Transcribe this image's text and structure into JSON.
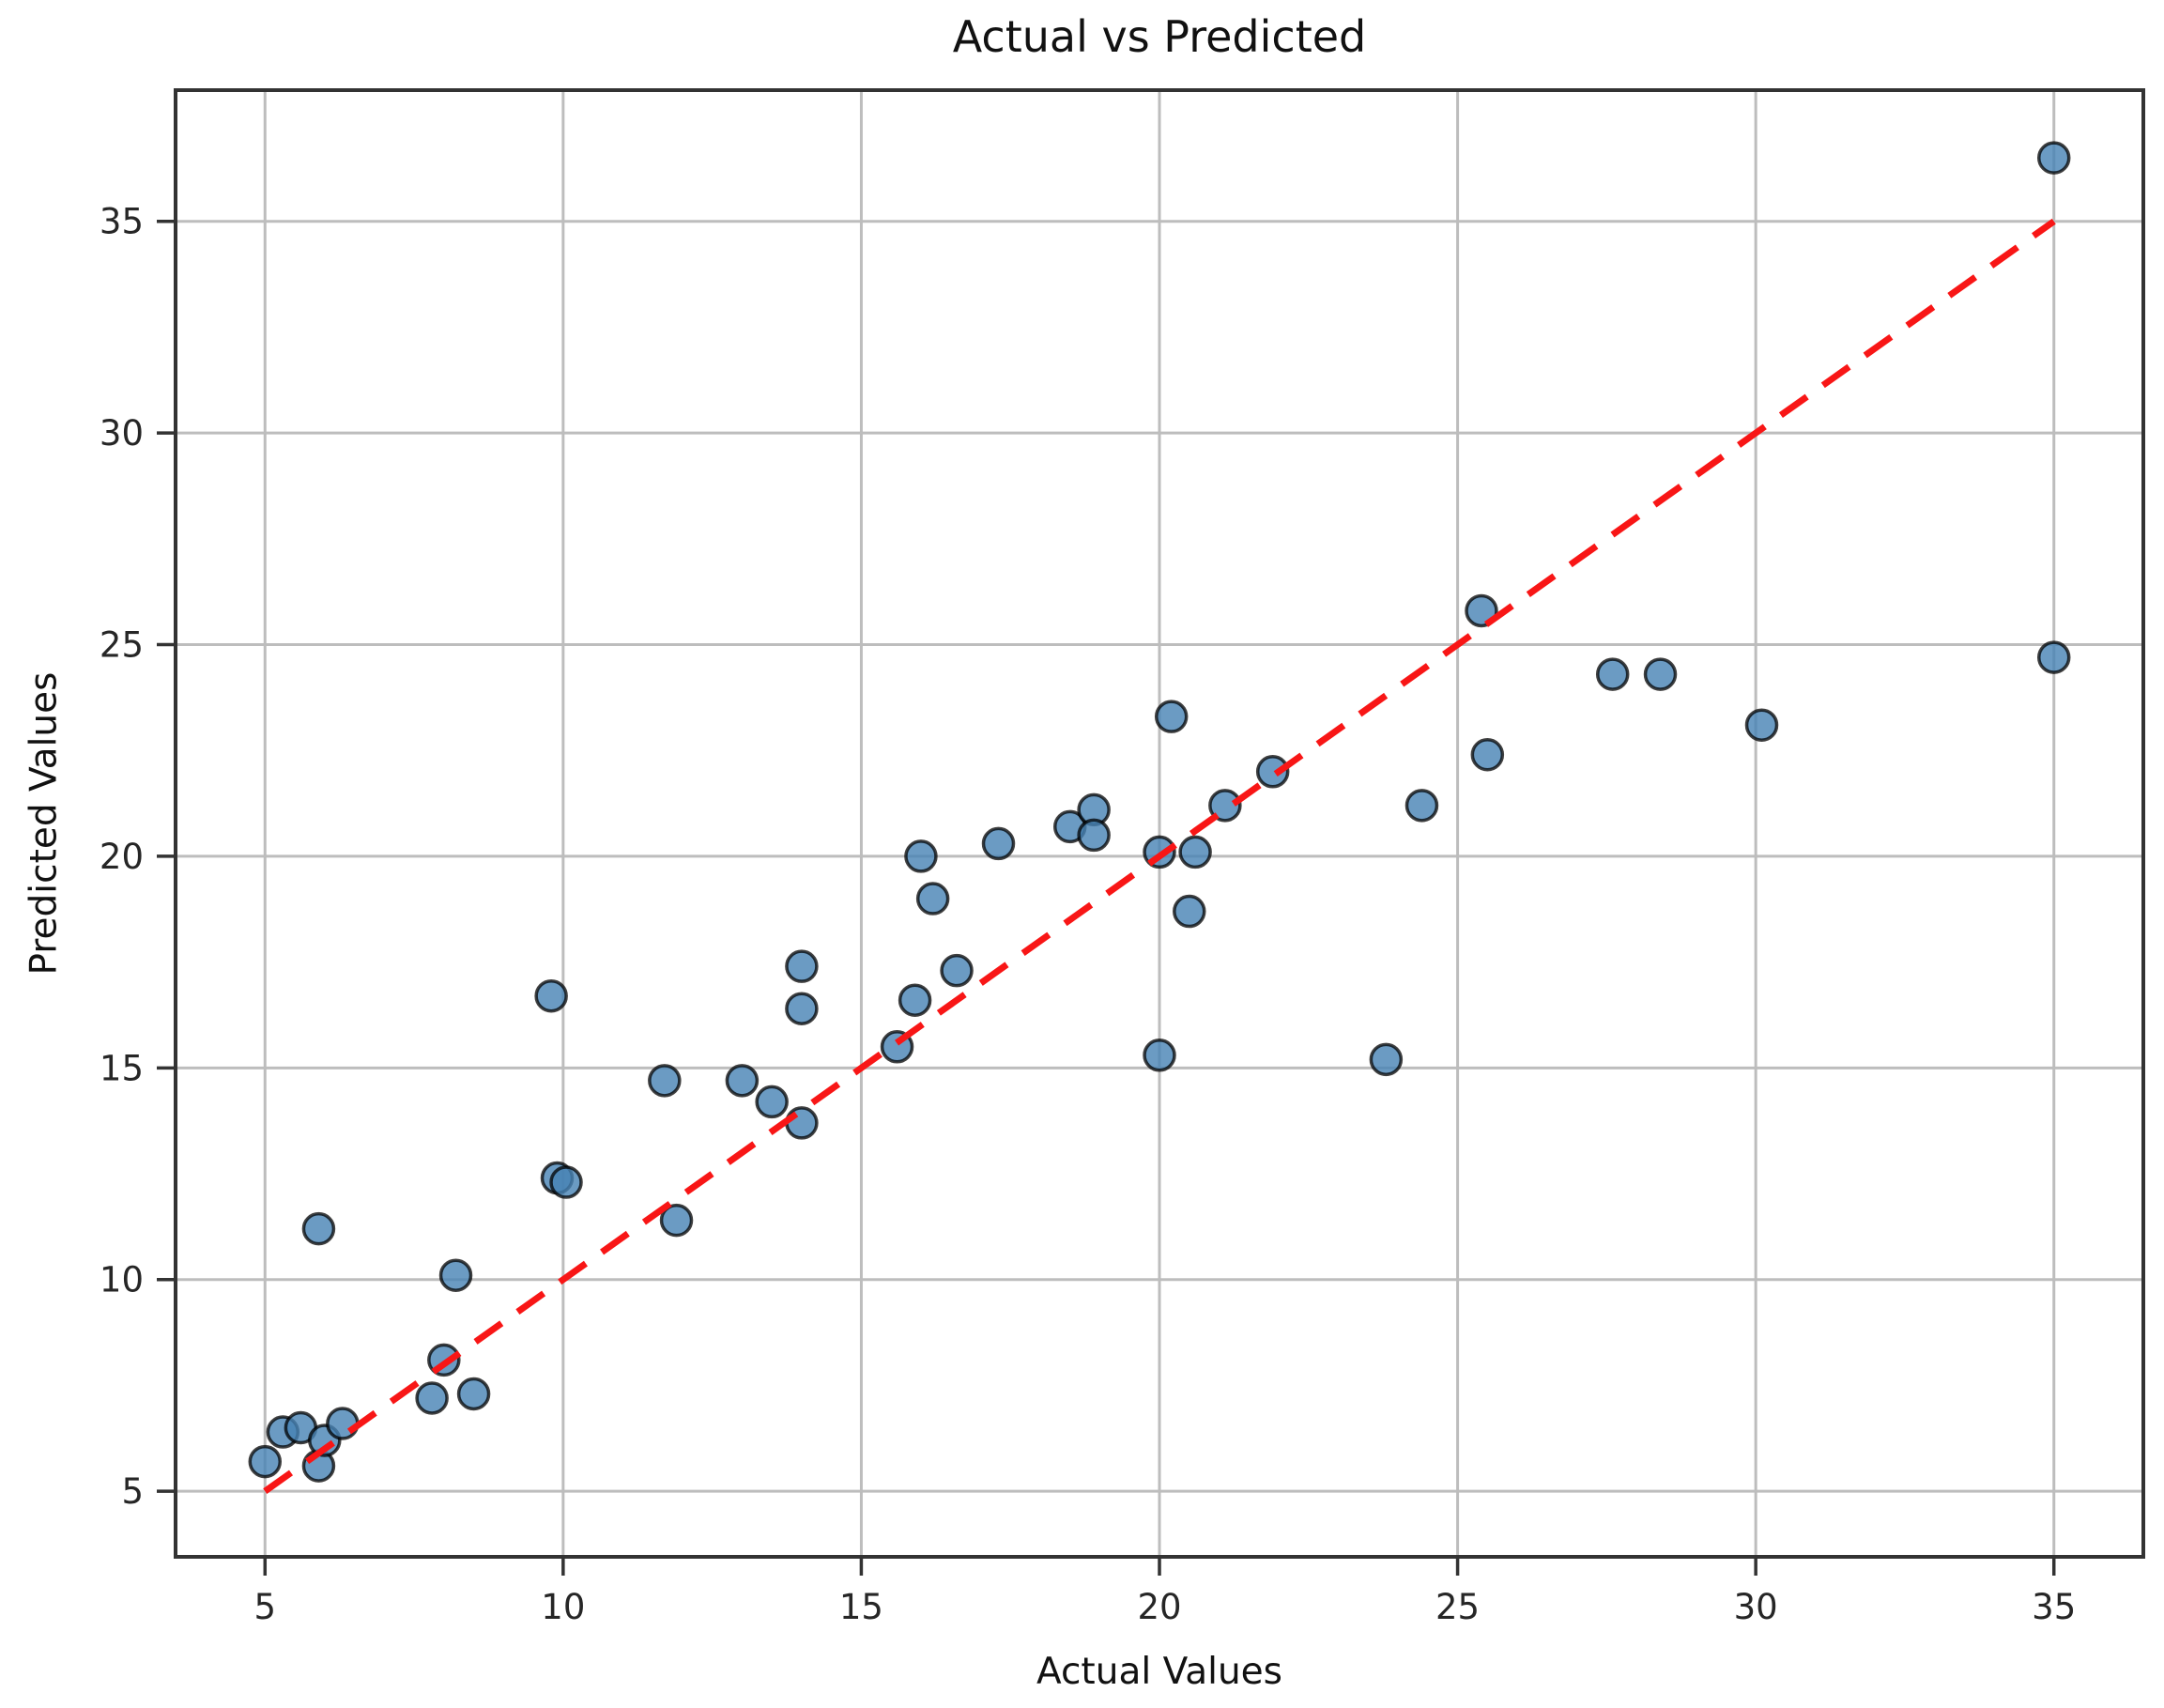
{
  "title": "Actual vs Predicted",
  "chart_data": {
    "type": "scatter",
    "title": "Actual vs Predicted",
    "xlabel": "Actual Values",
    "ylabel": "Predicted Values",
    "xlim": [
      3.5,
      36.5
    ],
    "ylim": [
      3.45,
      38.1
    ],
    "xticks": [
      5,
      10,
      15,
      20,
      25,
      30,
      35
    ],
    "yticks": [
      5,
      10,
      15,
      20,
      25,
      30,
      35
    ],
    "grid": true,
    "legend_position": "none",
    "series": [
      {
        "name": "predicted-vs-actual-points",
        "type": "scatter",
        "marker_fill": "#4682B4",
        "marker_fill_opacity": 0.8,
        "marker_edge": "#000000",
        "marker_edge_opacity": 0.75,
        "marker_radius": 16,
        "marker_edge_width": 3.5,
        "points": [
          [
            5.0,
            5.7
          ],
          [
            5.3,
            6.4
          ],
          [
            5.6,
            6.5
          ],
          [
            5.9,
            5.6
          ],
          [
            6.0,
            6.2
          ],
          [
            6.3,
            6.6
          ],
          [
            5.9,
            11.2
          ],
          [
            7.8,
            7.2
          ],
          [
            8.0,
            8.1
          ],
          [
            8.2,
            10.1
          ],
          [
            8.5,
            7.3
          ],
          [
            9.8,
            16.7
          ],
          [
            9.9,
            12.4
          ],
          [
            10.05,
            12.3
          ],
          [
            11.7,
            14.7
          ],
          [
            11.9,
            11.4
          ],
          [
            13.0,
            14.7
          ],
          [
            13.5,
            14.2
          ],
          [
            14.0,
            13.7
          ],
          [
            14.0,
            16.4
          ],
          [
            14.0,
            17.4
          ],
          [
            15.6,
            15.5
          ],
          [
            15.9,
            16.6
          ],
          [
            16.0,
            20.0
          ],
          [
            16.2,
            19.0
          ],
          [
            16.6,
            17.3
          ],
          [
            17.3,
            20.3
          ],
          [
            18.5,
            20.7
          ],
          [
            18.9,
            21.1
          ],
          [
            18.9,
            20.5
          ],
          [
            20.0,
            20.1
          ],
          [
            20.2,
            23.3
          ],
          [
            20.0,
            15.3
          ],
          [
            20.5,
            18.7
          ],
          [
            20.6,
            20.1
          ],
          [
            21.1,
            21.2
          ],
          [
            21.9,
            22.0
          ],
          [
            23.8,
            15.2
          ],
          [
            24.4,
            21.2
          ],
          [
            25.4,
            25.8
          ],
          [
            25.5,
            22.4
          ],
          [
            27.6,
            24.3
          ],
          [
            28.4,
            24.3
          ],
          [
            30.1,
            23.1
          ],
          [
            35.0,
            24.7
          ],
          [
            35.0,
            36.5
          ]
        ]
      },
      {
        "name": "identity-line",
        "type": "line",
        "style": "dashed",
        "color": "#F81616",
        "line_width": 7,
        "dash": [
          34,
          21
        ],
        "points": [
          [
            5,
            5
          ],
          [
            35,
            35
          ]
        ]
      }
    ],
    "colors": {
      "grid": "#bdbdbd",
      "spine": "#333333",
      "tick": "#333333",
      "tick_label": "#262626",
      "background": "#ffffff"
    }
  }
}
